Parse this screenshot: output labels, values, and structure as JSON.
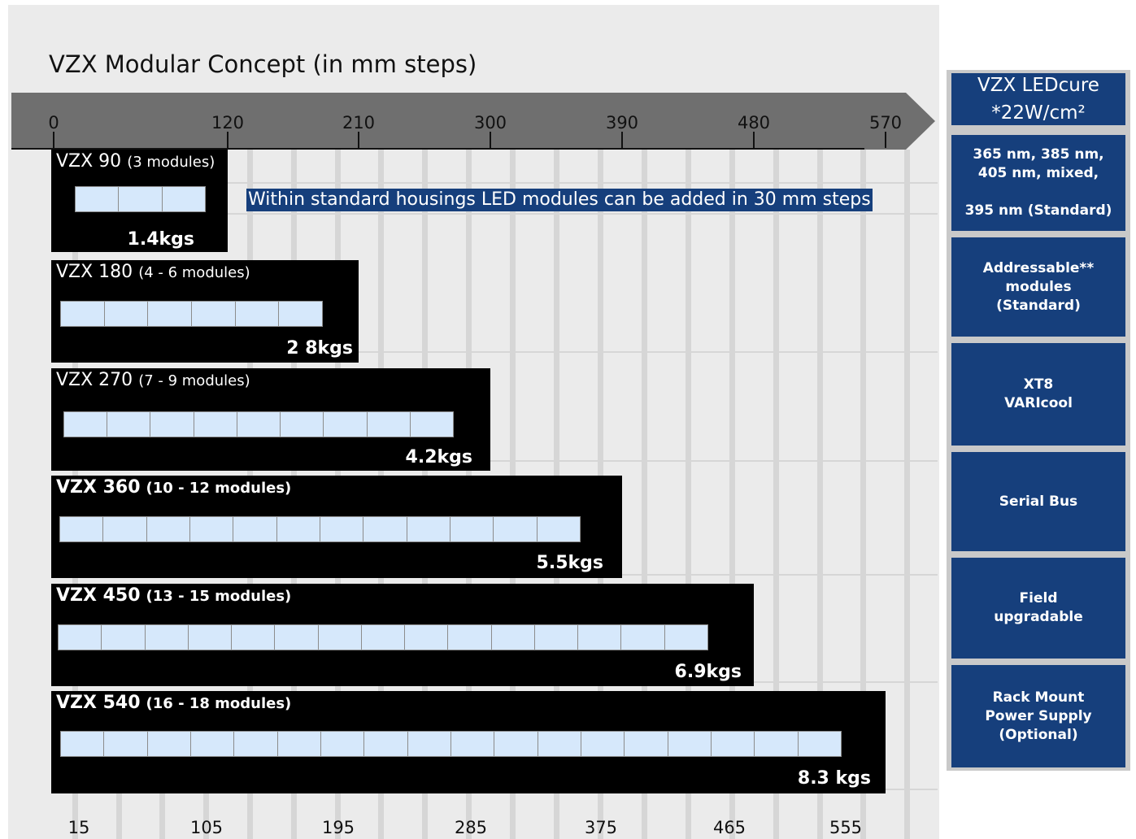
{
  "title": "VZX Modular Concept (in mm steps)",
  "top_scale": [
    "0",
    "120",
    "210",
    "300",
    "390",
    "480",
    "570"
  ],
  "bottom_scale": [
    "15",
    "105",
    "195",
    "285",
    "375",
    "465",
    "555"
  ],
  "note": "Within standard housings LED modules can be added in 30 mm steps",
  "colors": {
    "bar": "#000000",
    "module": "#d6e8fb",
    "accent": "#163f7c",
    "ruler": "#6f6f6f"
  },
  "units": [
    {
      "name": "VZX 90",
      "modules_label": "(3 modules)",
      "modules": 3,
      "weight": "1.4kgs"
    },
    {
      "name": "VZX 180",
      "modules_label": "(4 - 6 modules)",
      "modules": 6,
      "weight": "2 8kgs"
    },
    {
      "name": "VZX 270",
      "modules_label": "(7 - 9 modules)",
      "modules": 9,
      "weight": "4.2kgs"
    },
    {
      "name": "VZX 360",
      "modules_label": "(10 - 12 modules)",
      "modules": 12,
      "weight": "5.5kgs"
    },
    {
      "name": "VZX 450",
      "modules_label": "(13 - 15 modules)",
      "modules": 15,
      "weight": "6.9kgs"
    },
    {
      "name": "VZX 540",
      "modules_label": "(16 - 18 modules)",
      "modules": 18,
      "weight": "8.3 kgs"
    }
  ],
  "sidebar": {
    "heading_line1": "VZX LEDcure",
    "heading_line2": "*22W/cm²",
    "items": [
      {
        "line1": "365 nm, 385 nm,",
        "line2": "405 nm, mixed,",
        "line3": "",
        "line4": "395 nm (Standard)"
      },
      {
        "line1": "Addressable**",
        "line2": "modules",
        "line3": "(Standard)",
        "line4": ""
      },
      {
        "line1": "XT8",
        "line2": "VARIcool",
        "line3": "",
        "line4": ""
      },
      {
        "line1": "Serial Bus",
        "line2": "",
        "line3": "",
        "line4": ""
      },
      {
        "line1": "Field",
        "line2": "upgradable",
        "line3": "",
        "line4": ""
      },
      {
        "line1": "Rack Mount",
        "line2": "Power Supply",
        "line3": "(Optional)",
        "line4": ""
      }
    ]
  }
}
